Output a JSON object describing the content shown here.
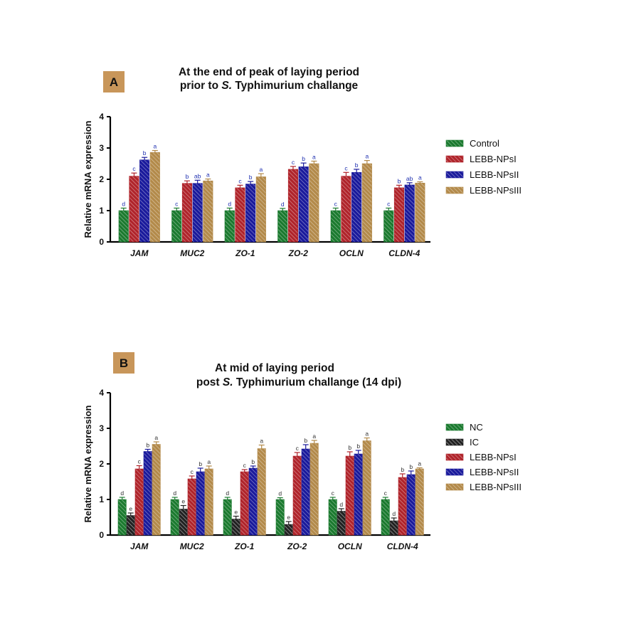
{
  "colors": {
    "green": "#1b7a2f",
    "black": "#222222",
    "red": "#b0242b",
    "blue": "#1a1a9c",
    "gold": "#b38a4a",
    "badge": "#c8965a",
    "sig_blue": "#1e2fb0",
    "sig_black": "#333333"
  },
  "chart_data": [
    {
      "type": "bar",
      "badge": "A",
      "title_line1": "At the end of peak of laying period",
      "title_line2_pre": "prior to ",
      "title_line2_ital": "S.",
      "title_line2_post": " Typhimurium challange",
      "ylabel": "Relative mRNA expression",
      "ylim": [
        0,
        4
      ],
      "yticks": [
        "0",
        "1",
        "2",
        "3",
        "4"
      ],
      "categories": [
        "JAM",
        "MUC2",
        "ZO-1",
        "ZO-2",
        "OCLN",
        "CLDN-4"
      ],
      "series": [
        {
          "name": "Control",
          "color": "green",
          "values": [
            1.0,
            1.0,
            1.0,
            1.0,
            1.0,
            1.0
          ],
          "errors": [
            0.08,
            0.08,
            0.08,
            0.07,
            0.08,
            0.08
          ],
          "letters": [
            "d",
            "c",
            "d",
            "d",
            "c",
            "c"
          ]
        },
        {
          "name": "LEBB-NPsI",
          "color": "red",
          "values": [
            2.1,
            1.87,
            1.73,
            2.32,
            2.1,
            1.73
          ],
          "errors": [
            0.1,
            0.08,
            0.08,
            0.09,
            0.12,
            0.08
          ],
          "letters": [
            "c",
            "b",
            "c",
            "c",
            "c",
            "b"
          ]
        },
        {
          "name": "LEBB-NPsII",
          "color": "blue",
          "values": [
            2.62,
            1.87,
            1.85,
            2.4,
            2.22,
            1.82
          ],
          "errors": [
            0.08,
            0.1,
            0.08,
            0.12,
            0.1,
            0.07
          ],
          "letters": [
            "b",
            "ab",
            "b",
            "b",
            "b",
            "ab"
          ]
        },
        {
          "name": "LEBB-NPsIII",
          "color": "gold",
          "values": [
            2.86,
            1.95,
            2.08,
            2.5,
            2.5,
            1.88
          ],
          "errors": [
            0.06,
            0.06,
            0.1,
            0.08,
            0.1,
            0.04
          ],
          "letters": [
            "a",
            "a",
            "a",
            "a",
            "a",
            "a"
          ]
        }
      ]
    },
    {
      "type": "bar",
      "badge": "B",
      "title_line1": "At mid of laying period",
      "title_line2_pre": "post ",
      "title_line2_ital": "S.",
      "title_line2_post": " Typhimurium challange (14 dpi)",
      "ylabel": "Relative mRNA expression",
      "ylim": [
        0,
        4
      ],
      "yticks": [
        "0",
        "1",
        "2",
        "3",
        "4"
      ],
      "categories": [
        "JAM",
        "MUC2",
        "ZO-1",
        "ZO-2",
        "OCLN",
        "CLDN-4"
      ],
      "series": [
        {
          "name": "NC",
          "color": "green",
          "values": [
            1.0,
            1.0,
            1.0,
            1.0,
            1.0,
            1.0
          ],
          "errors": [
            0.06,
            0.06,
            0.06,
            0.05,
            0.06,
            0.06
          ],
          "letters": [
            "d",
            "d",
            "d",
            "d",
            "c",
            "c"
          ]
        },
        {
          "name": "IC",
          "color": "black",
          "values": [
            0.55,
            0.73,
            0.45,
            0.3,
            0.67,
            0.4
          ],
          "errors": [
            0.07,
            0.1,
            0.08,
            0.08,
            0.07,
            0.08
          ],
          "letters": [
            "e",
            "e",
            "e",
            "e",
            "d",
            "d"
          ]
        },
        {
          "name": "LEBB-NPsI",
          "color": "red",
          "values": [
            1.86,
            1.58,
            1.78,
            2.22,
            2.22,
            1.62
          ],
          "errors": [
            0.09,
            0.08,
            0.06,
            0.1,
            0.12,
            0.1
          ],
          "letters": [
            "c",
            "c",
            "c",
            "c",
            "b",
            "b"
          ]
        },
        {
          "name": "LEBB-NPsII",
          "color": "blue",
          "values": [
            2.35,
            1.78,
            1.88,
            2.42,
            2.28,
            1.7
          ],
          "errors": [
            0.06,
            0.1,
            0.06,
            0.12,
            0.1,
            0.1
          ],
          "letters": [
            "b",
            "b",
            "b",
            "b",
            "b",
            "b"
          ]
        },
        {
          "name": "LEBB-NPsIII",
          "color": "gold",
          "values": [
            2.55,
            1.86,
            2.43,
            2.58,
            2.65,
            1.86
          ],
          "errors": [
            0.07,
            0.08,
            0.1,
            0.08,
            0.08,
            0.03
          ],
          "letters": [
            "a",
            "a",
            "a",
            "a",
            "a",
            "a"
          ]
        }
      ]
    }
  ]
}
